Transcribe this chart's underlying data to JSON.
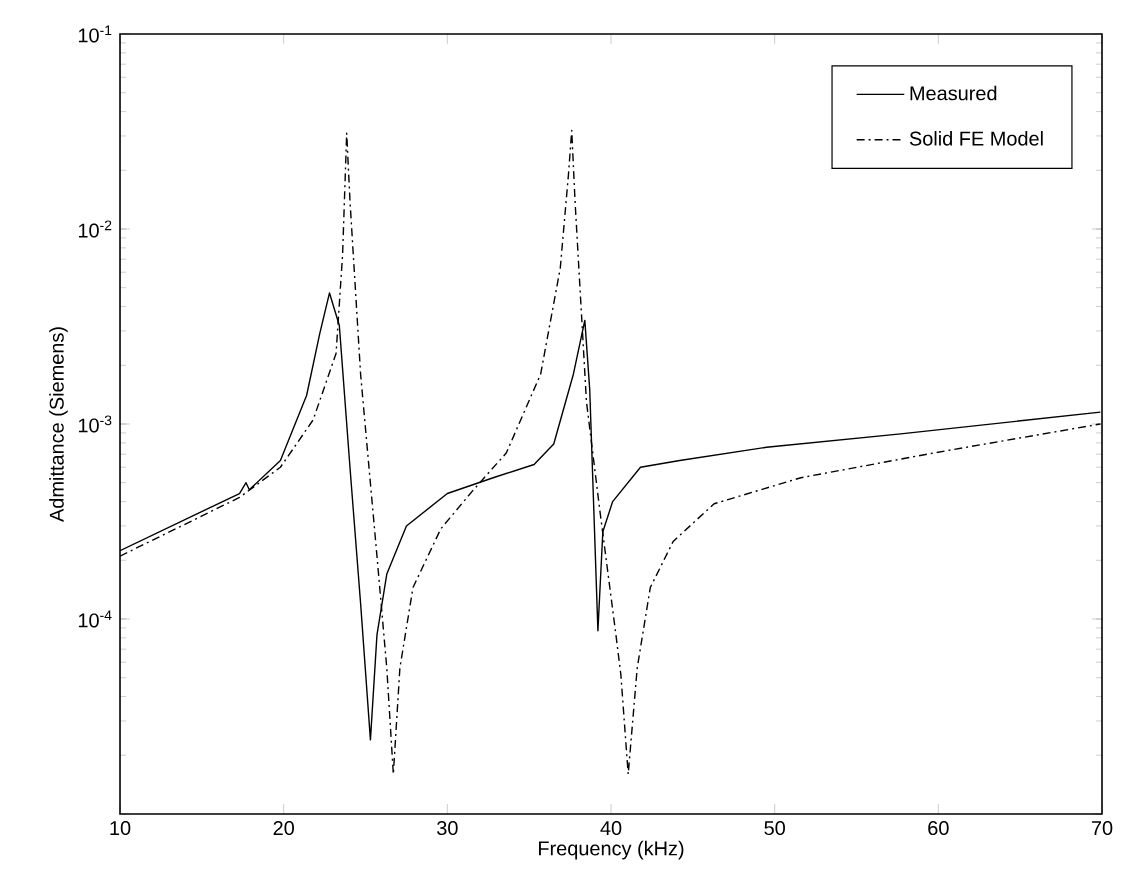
{
  "chart_data": {
    "type": "line",
    "xlabel": "Frequency (kHz)",
    "ylabel": "Admittance (Siemens)",
    "log": "y",
    "legend": "top right",
    "grid": false,
    "xlim": [
      10,
      70
    ],
    "xticks": [
      10,
      20,
      30,
      40,
      50,
      60,
      70
    ],
    "ylim": [
      1e-05,
      0.1
    ],
    "yticks": [
      {
        "value": 1e-05,
        "label": null
      },
      {
        "value": 0.0001,
        "label": "10$^{-4}$"
      },
      {
        "value": 0.001,
        "label": "10$^{-3}$"
      },
      {
        "value": 0.01,
        "label": "10$^{-2}$"
      },
      {
        "value": 0.1,
        "label": "10$^{-1}$"
      }
    ],
    "series": [
      {
        "name": "Measured",
        "color": "#000000",
        "line_style": "solid",
        "x": [
          10,
          17.3,
          17.7,
          17.9,
          19.8,
          21.4,
          22.2,
          22.8,
          23.4,
          24.05,
          24.7,
          25.3,
          25.7,
          26.3,
          27.5,
          30.0,
          32.8,
          35.3,
          36.5,
          37.7,
          38.4,
          38.7,
          39.2,
          39.5,
          40.1,
          41.8,
          44.2,
          49.5,
          57.7,
          69.9
        ],
        "values": [
          0.000224,
          0.00044,
          0.0005,
          0.00046,
          0.00065,
          0.0014,
          0.0029,
          0.0047,
          0.0032,
          0.0006,
          0.00012,
          2.4e-05,
          8.3e-05,
          0.00017,
          0.0003,
          0.00044,
          0.00053,
          0.00062,
          0.00079,
          0.0018,
          0.0034,
          0.0015,
          8.7e-05,
          0.00028,
          0.0004,
          0.0006,
          0.00065,
          0.00076,
          0.00089,
          0.00115
        ]
      },
      {
        "name": "Solid FE Model",
        "color": "#000000",
        "line_style": "dashdot",
        "x": [
          10,
          17.3,
          19.8,
          21.8,
          23.2,
          23.6,
          23.85,
          24.05,
          24.7,
          25.7,
          26.3,
          26.7,
          27.1,
          27.9,
          29.6,
          31.6,
          33.6,
          35.7,
          36.9,
          37.4,
          37.6,
          37.8,
          38.5,
          39.3,
          40.3,
          40.6,
          41.05,
          41.6,
          42.4,
          43.8,
          46.3,
          51.6,
          59.7,
          69.9
        ],
        "values": [
          0.00021,
          0.00042,
          0.0006,
          0.00105,
          0.0023,
          0.0074,
          0.031,
          0.014,
          0.0018,
          0.00021,
          5.6e-05,
          1.6e-05,
          5.6e-05,
          0.000145,
          0.00029,
          0.00046,
          0.00071,
          0.0018,
          0.0063,
          0.019,
          0.032,
          0.014,
          0.0013,
          0.00037,
          8.3e-05,
          5.2e-05,
          1.6e-05,
          5.6e-05,
          0.000145,
          0.00025,
          0.00039,
          0.00053,
          0.00071,
          0.001
        ]
      }
    ]
  }
}
